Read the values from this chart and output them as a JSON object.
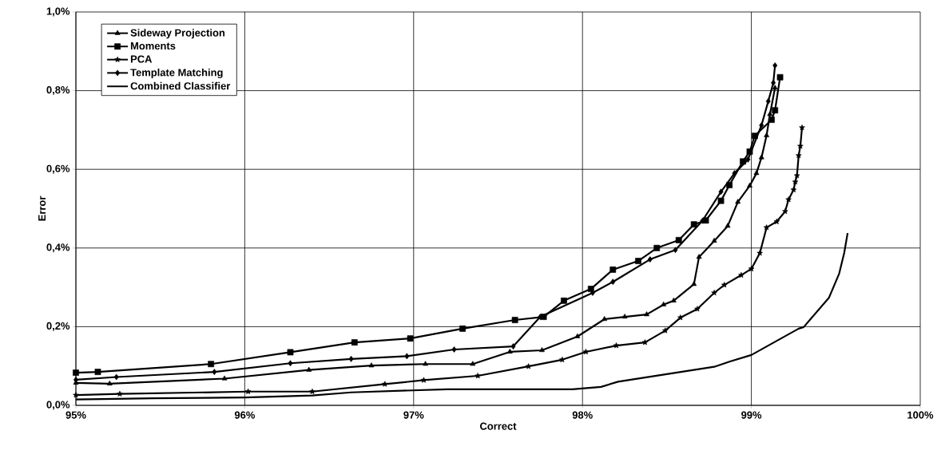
{
  "chart_data": {
    "type": "line",
    "xlabel": "Correct",
    "ylabel": "Error",
    "xlim": [
      95,
      100
    ],
    "ylim": [
      0,
      1
    ],
    "xticks": [
      {
        "value": 95,
        "label": "95%"
      },
      {
        "value": 96,
        "label": "96%"
      },
      {
        "value": 97,
        "label": "97%"
      },
      {
        "value": 98,
        "label": "98%"
      },
      {
        "value": 99,
        "label": "99%"
      },
      {
        "value": 100,
        "label": "100%"
      }
    ],
    "yticks": [
      {
        "value": 0,
        "label": "0,0%"
      },
      {
        "value": 0.2,
        "label": "0,2%"
      },
      {
        "value": 0.4,
        "label": "0,4%"
      },
      {
        "value": 0.6,
        "label": "0,6%"
      },
      {
        "value": 0.8,
        "label": "0,8%"
      },
      {
        "value": 1,
        "label": "1,0%"
      }
    ],
    "grid": true,
    "legend": "top left",
    "series": [
      {
        "name": "Sideway Projection",
        "color": "#000000",
        "marker": "triangle",
        "x": [
          95.0,
          95.2,
          95.88,
          96.38,
          96.75,
          97.07,
          97.35,
          97.57,
          97.76,
          97.97,
          98.13,
          98.25,
          98.38,
          98.48,
          98.54,
          98.66,
          98.69,
          98.78,
          98.86,
          98.92,
          98.99,
          99.03,
          99.06,
          99.09,
          99.11,
          99.14
        ],
        "values": [
          0.057,
          0.055,
          0.068,
          0.09,
          0.101,
          0.105,
          0.105,
          0.136,
          0.14,
          0.175,
          0.219,
          0.225,
          0.231,
          0.256,
          0.266,
          0.308,
          0.377,
          0.418,
          0.456,
          0.517,
          0.558,
          0.59,
          0.63,
          0.686,
          0.74,
          0.807
        ]
      },
      {
        "name": "Moments",
        "color": "#000000",
        "marker": "square",
        "x": [
          95.0,
          95.13,
          95.8,
          96.27,
          96.65,
          96.98,
          97.29,
          97.6,
          97.77,
          97.89,
          98.05,
          98.18,
          98.33,
          98.44,
          98.57,
          98.66,
          98.73,
          98.82,
          98.87,
          98.95,
          98.99,
          99.02,
          99.12,
          99.14,
          99.17
        ],
        "values": [
          0.083,
          0.085,
          0.105,
          0.135,
          0.16,
          0.17,
          0.195,
          0.217,
          0.225,
          0.266,
          0.296,
          0.345,
          0.367,
          0.4,
          0.42,
          0.46,
          0.47,
          0.52,
          0.56,
          0.62,
          0.645,
          0.685,
          0.726,
          0.75,
          0.834
        ]
      },
      {
        "name": "PCA",
        "color": "#000000",
        "marker": "star",
        "x": [
          95.0,
          95.26,
          96.02,
          96.4,
          96.83,
          97.06,
          97.38,
          97.68,
          97.88,
          98.02,
          98.2,
          98.37,
          98.49,
          98.58,
          98.68,
          98.78,
          98.84,
          98.94,
          99.0,
          99.05,
          99.09,
          99.15,
          99.2,
          99.22,
          99.25,
          99.26,
          99.27,
          99.28,
          99.29,
          99.3
        ],
        "values": [
          0.026,
          0.029,
          0.035,
          0.035,
          0.054,
          0.064,
          0.075,
          0.099,
          0.116,
          0.136,
          0.152,
          0.16,
          0.19,
          0.223,
          0.245,
          0.286,
          0.306,
          0.331,
          0.347,
          0.387,
          0.452,
          0.467,
          0.493,
          0.523,
          0.548,
          0.568,
          0.584,
          0.635,
          0.659,
          0.706
        ]
      },
      {
        "name": "Template Matching",
        "color": "#000000",
        "marker": "diamond",
        "x": [
          95.0,
          95.24,
          95.82,
          96.27,
          96.63,
          96.96,
          97.24,
          97.59,
          97.75,
          98.06,
          98.18,
          98.4,
          98.55,
          98.71,
          98.82,
          98.9,
          98.98,
          99.06,
          99.1,
          99.13,
          99.14
        ],
        "values": [
          0.065,
          0.072,
          0.085,
          0.107,
          0.118,
          0.125,
          0.142,
          0.15,
          0.225,
          0.286,
          0.314,
          0.371,
          0.395,
          0.469,
          0.543,
          0.59,
          0.625,
          0.712,
          0.773,
          0.82,
          0.864
        ]
      },
      {
        "name": "Combined Classifier",
        "color": "#000000",
        "marker": "none",
        "x": [
          95.0,
          95.46,
          96.0,
          96.4,
          96.63,
          97.2,
          97.37,
          97.94,
          98.11,
          98.21,
          98.78,
          98.87,
          99.0,
          99.28,
          99.31,
          99.46,
          99.52,
          99.55,
          99.57
        ],
        "values": [
          0.015,
          0.018,
          0.02,
          0.025,
          0.033,
          0.041,
          0.041,
          0.041,
          0.047,
          0.06,
          0.098,
          0.111,
          0.128,
          0.195,
          0.199,
          0.274,
          0.335,
          0.388,
          0.438
        ]
      }
    ]
  }
}
